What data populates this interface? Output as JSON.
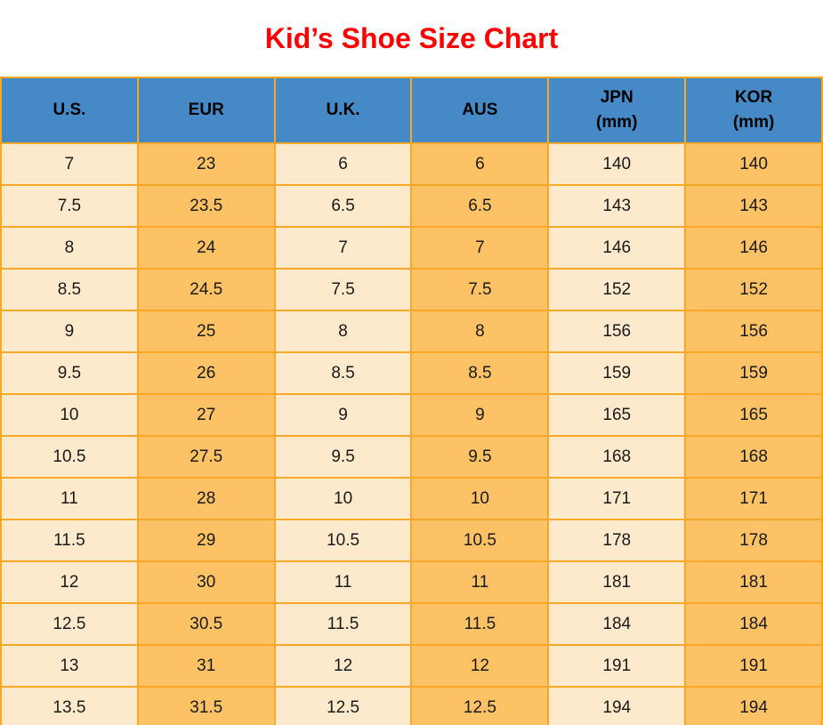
{
  "title": "Kid’s Shoe Size Chart",
  "colors": {
    "title_red": "#FF0000",
    "header_blue": "#4589C6",
    "col_light": "#FDE9CB",
    "col_orange": "#FEC266",
    "grid_orange": "#F9A825",
    "text_dark": "#1A1A1A"
  },
  "table": {
    "headers": [
      {
        "label": "U.S.",
        "sub": ""
      },
      {
        "label": "EUR",
        "sub": ""
      },
      {
        "label": "U.K.",
        "sub": ""
      },
      {
        "label": "AUS",
        "sub": ""
      },
      {
        "label": "JPN",
        "sub": "(mm)"
      },
      {
        "label": "KOR",
        "sub": "(mm)"
      }
    ],
    "rows": [
      [
        "7",
        "23",
        "6",
        "6",
        "140",
        "140"
      ],
      [
        "7.5",
        "23.5",
        "6.5",
        "6.5",
        "143",
        "143"
      ],
      [
        "8",
        "24",
        "7",
        "7",
        "146",
        "146"
      ],
      [
        "8.5",
        "24.5",
        "7.5",
        "7.5",
        "152",
        "152"
      ],
      [
        "9",
        "25",
        "8",
        "8",
        "156",
        "156"
      ],
      [
        "9.5",
        "26",
        "8.5",
        "8.5",
        "159",
        "159"
      ],
      [
        "10",
        "27",
        "9",
        "9",
        "165",
        "165"
      ],
      [
        "10.5",
        "27.5",
        "9.5",
        "9.5",
        "168",
        "168"
      ],
      [
        "11",
        "28",
        "10",
        "10",
        "171",
        "171"
      ],
      [
        "11.5",
        "29",
        "10.5",
        "10.5",
        "178",
        "178"
      ],
      [
        "12",
        "30",
        "11",
        "11",
        "181",
        "181"
      ],
      [
        "12.5",
        "30.5",
        "11.5",
        "11.5",
        "184",
        "184"
      ],
      [
        "13",
        "31",
        "12",
        "12",
        "191",
        "191"
      ],
      [
        "13.5",
        "31.5",
        "12.5",
        "12.5",
        "194",
        "194"
      ]
    ]
  },
  "chart_data": {
    "type": "table",
    "title": "Kid’s Shoe Size Chart",
    "columns": [
      "U.S.",
      "EUR",
      "U.K.",
      "AUS",
      "JPN (mm)",
      "KOR (mm)"
    ],
    "rows": [
      [
        7,
        23,
        6,
        6,
        140,
        140
      ],
      [
        7.5,
        23.5,
        6.5,
        6.5,
        143,
        143
      ],
      [
        8,
        24,
        7,
        7,
        146,
        146
      ],
      [
        8.5,
        24.5,
        7.5,
        7.5,
        152,
        152
      ],
      [
        9,
        25,
        8,
        8,
        156,
        156
      ],
      [
        9.5,
        26,
        8.5,
        8.5,
        159,
        159
      ],
      [
        10,
        27,
        9,
        9,
        165,
        165
      ],
      [
        10.5,
        27.5,
        9.5,
        9.5,
        168,
        168
      ],
      [
        11,
        28,
        10,
        10,
        171,
        171
      ],
      [
        11.5,
        29,
        10.5,
        10.5,
        178,
        178
      ],
      [
        12,
        30,
        11,
        11,
        181,
        181
      ],
      [
        12.5,
        30.5,
        11.5,
        11.5,
        184,
        184
      ],
      [
        13,
        31,
        12,
        12,
        191,
        191
      ],
      [
        13.5,
        31.5,
        12.5,
        12.5,
        194,
        194
      ]
    ],
    "layout": {
      "header_background": "#4589C6",
      "alternating_column_colors": [
        "#FDE9CB",
        "#FEC266"
      ],
      "gridline_color": "#F9A825",
      "title_color": "#FF0000"
    }
  }
}
